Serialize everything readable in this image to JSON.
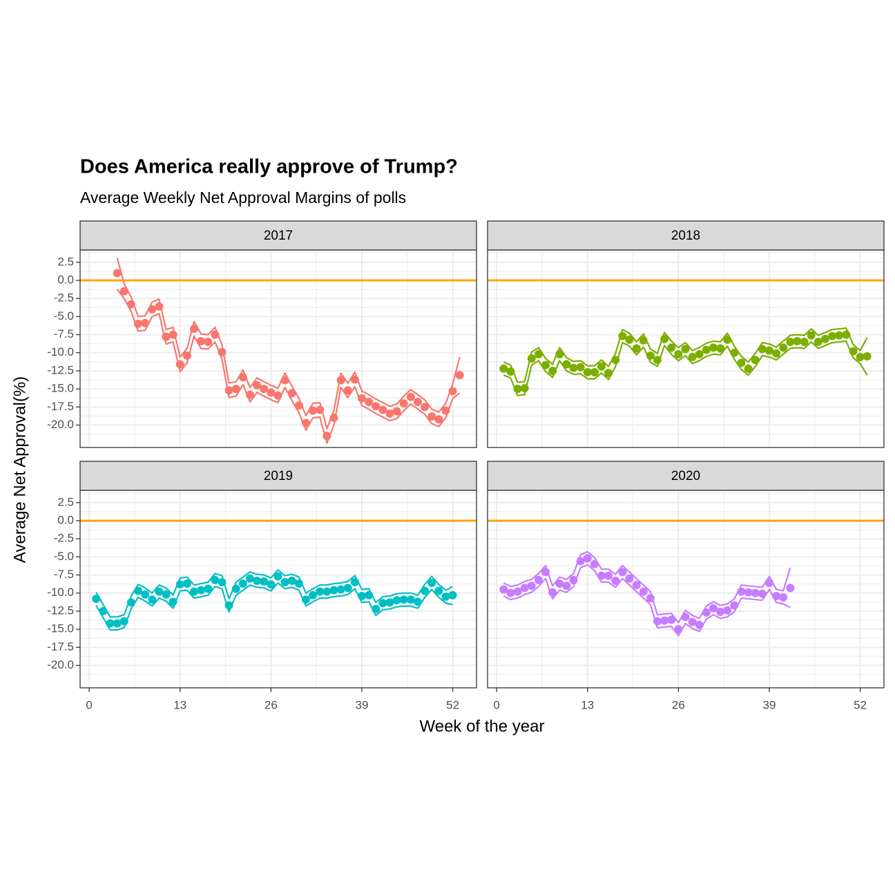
{
  "chart_data": {
    "type": "line",
    "title": "Does America really approve of Trump?",
    "subtitle": "Average Weekly Net Approval Margins of polls",
    "xlabel": "Week of the year",
    "ylabel": "Average Net Approval(%)",
    "xlim": [
      -1.3,
      55.4
    ],
    "xticks": [
      0,
      13,
      26,
      39,
      52
    ],
    "ylim": [
      -23.1,
      4.2
    ],
    "yticks": [
      2.5,
      {
        "value": 0,
        "label": "0.0"
      },
      -2.5,
      {
        "value": -5,
        "label": "-5.0"
      },
      -7.5,
      {
        "value": -10,
        "label": "-10.0"
      },
      -12.5,
      {
        "value": -15,
        "label": "-15.0"
      },
      -17.5,
      {
        "value": -20,
        "label": "-20.0"
      }
    ],
    "grid": true,
    "hline": {
      "value": 0,
      "color": "#ffa500"
    },
    "facets": [
      {
        "label": "2017",
        "color": "#f8766d",
        "x": [
          4,
          5,
          6,
          7,
          8,
          9,
          10,
          11,
          12,
          13,
          14,
          15,
          16,
          17,
          18,
          19,
          20,
          21,
          22,
          23,
          24,
          25,
          26,
          27,
          28,
          29,
          30,
          31,
          32,
          33,
          34,
          35,
          36,
          37,
          38,
          39,
          40,
          41,
          42,
          43,
          44,
          45,
          46,
          47,
          48,
          49,
          50,
          51,
          52,
          53
        ],
        "values": [
          1.0,
          -1.5,
          -3.3,
          -6.0,
          -5.9,
          -4.0,
          -3.6,
          -7.8,
          -7.5,
          -11.6,
          -10.4,
          -6.7,
          -8.4,
          -8.5,
          -7.5,
          -9.9,
          -15.2,
          -15.0,
          -13.4,
          -15.8,
          -14.5,
          -15.0,
          -15.5,
          -15.9,
          -13.8,
          -15.6,
          -17.3,
          -19.7,
          -18.0,
          -17.9,
          -21.5,
          -19.0,
          -13.8,
          -15.2,
          -13.7,
          -16.3,
          -16.8,
          -17.4,
          -17.9,
          -18.4,
          -18.1,
          -17.0,
          -16.1,
          -16.8,
          -17.5,
          -18.8,
          -19.2,
          -18.0,
          -15.3,
          -13.1
        ],
        "upper": [
          3.1,
          -0.5,
          -2.3,
          -5.0,
          -4.9,
          -3.0,
          -2.6,
          -6.8,
          -6.5,
          -10.6,
          -9.4,
          -5.7,
          -7.4,
          -7.5,
          -6.5,
          -8.9,
          -14.2,
          -14.0,
          -12.4,
          -14.8,
          -13.5,
          -14.0,
          -14.5,
          -14.9,
          -12.8,
          -14.6,
          -16.3,
          -18.7,
          -17.0,
          -16.9,
          -20.5,
          -18.0,
          -12.8,
          -14.2,
          -12.7,
          -15.3,
          -15.8,
          -16.4,
          -16.9,
          -17.4,
          -17.1,
          -16.0,
          -15.1,
          -15.8,
          -16.5,
          -17.8,
          -18.2,
          -17.0,
          -14.3,
          -10.6
        ],
        "lower": [
          -1.2,
          -2.5,
          -4.3,
          -7.0,
          -6.9,
          -5.0,
          -4.6,
          -8.8,
          -8.5,
          -12.6,
          -11.4,
          -7.7,
          -9.4,
          -9.5,
          -8.5,
          -10.9,
          -16.2,
          -16.0,
          -14.4,
          -16.8,
          -15.5,
          -16.0,
          -16.5,
          -16.9,
          -14.8,
          -16.6,
          -18.3,
          -20.7,
          -19.0,
          -18.9,
          -22.5,
          -20.0,
          -14.8,
          -16.2,
          -14.7,
          -17.3,
          -17.8,
          -18.4,
          -18.9,
          -19.4,
          -19.1,
          -18.0,
          -17.1,
          -17.8,
          -18.5,
          -19.8,
          -20.2,
          -19.0,
          -16.3,
          -15.6
        ]
      },
      {
        "label": "2018",
        "color": "#7cae00",
        "x": [
          1,
          2,
          3,
          4,
          5,
          6,
          7,
          8,
          9,
          10,
          11,
          12,
          13,
          14,
          15,
          16,
          17,
          18,
          19,
          20,
          21,
          22,
          23,
          24,
          25,
          26,
          27,
          28,
          29,
          30,
          31,
          32,
          33,
          34,
          35,
          36,
          37,
          38,
          39,
          40,
          41,
          42,
          43,
          44,
          45,
          46,
          47,
          48,
          49,
          50,
          51,
          52,
          53
        ],
        "values": [
          -12.2,
          -12.6,
          -15.0,
          -14.9,
          -10.8,
          -10.2,
          -11.7,
          -12.5,
          -10.2,
          -11.6,
          -12.1,
          -12.0,
          -12.7,
          -12.7,
          -11.9,
          -12.8,
          -11.0,
          -7.7,
          -8.2,
          -9.4,
          -8.3,
          -10.4,
          -11.0,
          -8.1,
          -9.3,
          -10.2,
          -9.5,
          -10.6,
          -10.2,
          -9.6,
          -9.3,
          -9.4,
          -8.2,
          -10.0,
          -11.4,
          -12.2,
          -11.0,
          -9.5,
          -9.7,
          -10.1,
          -9.3,
          -8.5,
          -8.4,
          -8.5,
          -7.6,
          -8.5,
          -8.1,
          -7.7,
          -7.6,
          -7.5,
          -9.8,
          -10.6,
          -10.5
        ],
        "upper": [
          -11.3,
          -11.7,
          -14.1,
          -14.0,
          -9.9,
          -9.3,
          -10.8,
          -11.6,
          -9.3,
          -10.7,
          -11.2,
          -11.1,
          -11.8,
          -11.8,
          -11.0,
          -11.9,
          -10.1,
          -6.8,
          -7.3,
          -8.5,
          -7.4,
          -9.5,
          -10.1,
          -7.2,
          -8.4,
          -9.3,
          -8.6,
          -9.7,
          -9.3,
          -8.7,
          -8.4,
          -8.5,
          -7.3,
          -9.1,
          -10.5,
          -11.3,
          -10.1,
          -8.6,
          -8.8,
          -9.2,
          -8.4,
          -7.6,
          -7.5,
          -7.6,
          -6.7,
          -7.6,
          -7.2,
          -6.8,
          -6.7,
          -6.6,
          -8.9,
          -9.7,
          -7.9
        ],
        "lower": [
          -13.1,
          -13.5,
          -15.9,
          -15.8,
          -11.7,
          -11.1,
          -12.6,
          -13.4,
          -11.1,
          -12.5,
          -13.0,
          -12.9,
          -13.6,
          -13.6,
          -12.8,
          -13.7,
          -11.9,
          -8.6,
          -9.1,
          -10.3,
          -9.2,
          -11.3,
          -11.9,
          -9.0,
          -10.2,
          -11.1,
          -10.4,
          -11.5,
          -11.1,
          -10.5,
          -10.2,
          -10.3,
          -9.1,
          -10.9,
          -12.3,
          -13.1,
          -11.9,
          -10.4,
          -10.6,
          -11.0,
          -10.2,
          -9.4,
          -9.3,
          -9.4,
          -8.5,
          -9.4,
          -9.0,
          -8.6,
          -8.5,
          -8.4,
          -10.7,
          -11.5,
          -13.1
        ]
      },
      {
        "label": "2019",
        "color": "#00bfc4",
        "x": [
          1,
          2,
          3,
          4,
          5,
          6,
          7,
          8,
          9,
          10,
          11,
          12,
          13,
          14,
          15,
          16,
          17,
          18,
          19,
          20,
          21,
          22,
          23,
          24,
          25,
          26,
          27,
          28,
          29,
          30,
          31,
          32,
          33,
          34,
          35,
          36,
          37,
          38,
          39,
          40,
          41,
          42,
          43,
          44,
          45,
          46,
          47,
          48,
          49,
          50,
          51,
          52
        ],
        "values": [
          -10.8,
          -12.5,
          -14.2,
          -14.2,
          -13.9,
          -11.3,
          -9.7,
          -10.2,
          -10.9,
          -9.8,
          -10.2,
          -11.2,
          -8.8,
          -8.7,
          -9.8,
          -9.6,
          -9.4,
          -8.2,
          -8.5,
          -11.7,
          -9.4,
          -8.7,
          -8.0,
          -8.3,
          -8.4,
          -8.8,
          -7.7,
          -8.5,
          -8.3,
          -8.7,
          -10.9,
          -10.3,
          -9.8,
          -9.8,
          -9.6,
          -9.5,
          -9.3,
          -8.5,
          -10.4,
          -10.3,
          -12.2,
          -11.4,
          -11.3,
          -11.0,
          -10.9,
          -10.9,
          -11.2,
          -9.7,
          -8.6,
          -9.7,
          -10.5,
          -10.3
        ],
        "upper": [
          -9.9,
          -11.6,
          -13.3,
          -13.3,
          -13.0,
          -10.4,
          -8.8,
          -9.3,
          -10.0,
          -8.9,
          -9.3,
          -10.3,
          -7.9,
          -7.8,
          -8.9,
          -8.7,
          -8.5,
          -7.3,
          -7.6,
          -10.8,
          -8.5,
          -7.8,
          -7.1,
          -7.4,
          -7.5,
          -7.9,
          -6.8,
          -7.6,
          -7.4,
          -7.8,
          -10.0,
          -9.4,
          -8.9,
          -8.9,
          -8.7,
          -8.6,
          -8.4,
          -7.6,
          -9.5,
          -9.4,
          -11.3,
          -10.5,
          -10.4,
          -10.1,
          -10.0,
          -10.0,
          -10.3,
          -8.8,
          -7.7,
          -8.8,
          -9.6,
          -9.1
        ],
        "lower": [
          -11.7,
          -13.4,
          -15.1,
          -15.1,
          -14.8,
          -12.2,
          -10.6,
          -11.1,
          -11.8,
          -10.7,
          -11.1,
          -12.1,
          -9.7,
          -9.6,
          -10.7,
          -10.5,
          -10.3,
          -9.1,
          -9.4,
          -12.6,
          -10.3,
          -9.6,
          -8.9,
          -9.2,
          -9.3,
          -9.7,
          -8.6,
          -9.4,
          -9.2,
          -9.6,
          -11.8,
          -11.2,
          -10.7,
          -10.7,
          -10.5,
          -10.4,
          -10.2,
          -9.4,
          -11.3,
          -11.2,
          -13.1,
          -12.3,
          -12.2,
          -11.9,
          -11.8,
          -11.8,
          -12.1,
          -10.6,
          -9.5,
          -10.6,
          -11.4,
          -11.6
        ]
      },
      {
        "label": "2020",
        "color": "#c77cff",
        "x": [
          1,
          2,
          3,
          4,
          5,
          6,
          7,
          8,
          9,
          10,
          11,
          12,
          13,
          14,
          15,
          16,
          17,
          18,
          19,
          20,
          21,
          22,
          23,
          24,
          25,
          26,
          27,
          28,
          29,
          30,
          31,
          32,
          33,
          34,
          35,
          36,
          37,
          38,
          39,
          40,
          41,
          42
        ],
        "values": [
          -9.5,
          -10.0,
          -9.8,
          -9.3,
          -9.0,
          -8.2,
          -7.1,
          -9.9,
          -8.7,
          -9.0,
          -8.2,
          -5.6,
          -5.2,
          -6.0,
          -7.6,
          -7.6,
          -8.3,
          -7.1,
          -8.0,
          -8.9,
          -9.8,
          -10.7,
          -13.9,
          -13.8,
          -13.7,
          -15.0,
          -13.3,
          -14.0,
          -14.4,
          -12.7,
          -12.1,
          -12.6,
          -12.4,
          -11.7,
          -9.8,
          -9.9,
          -10.0,
          -10.1,
          -8.6,
          -10.4,
          -10.6,
          -9.3
        ],
        "upper": [
          -8.6,
          -9.1,
          -8.9,
          -8.4,
          -8.1,
          -7.3,
          -6.2,
          -9.0,
          -7.8,
          -8.1,
          -7.3,
          -4.7,
          -4.3,
          -5.1,
          -6.7,
          -6.7,
          -7.4,
          -6.2,
          -7.1,
          -8.0,
          -8.9,
          -9.8,
          -13.0,
          -12.9,
          -12.8,
          -14.1,
          -12.4,
          -13.1,
          -13.5,
          -11.8,
          -11.2,
          -11.7,
          -11.5,
          -10.8,
          -8.9,
          -9.0,
          -9.1,
          -9.2,
          -7.7,
          -9.5,
          -9.7,
          -6.5
        ],
        "lower": [
          -10.4,
          -10.9,
          -10.7,
          -10.2,
          -9.9,
          -9.1,
          -8.0,
          -10.8,
          -9.6,
          -9.9,
          -9.1,
          -6.5,
          -6.1,
          -6.9,
          -8.5,
          -8.5,
          -9.2,
          -8.0,
          -8.9,
          -9.8,
          -10.7,
          -11.6,
          -14.8,
          -14.7,
          -14.6,
          -15.9,
          -14.2,
          -14.9,
          -15.3,
          -13.6,
          -13.0,
          -13.5,
          -13.3,
          -12.6,
          -10.7,
          -10.8,
          -10.9,
          -11.0,
          -9.5,
          -11.3,
          -11.5,
          -12.0
        ]
      }
    ]
  }
}
